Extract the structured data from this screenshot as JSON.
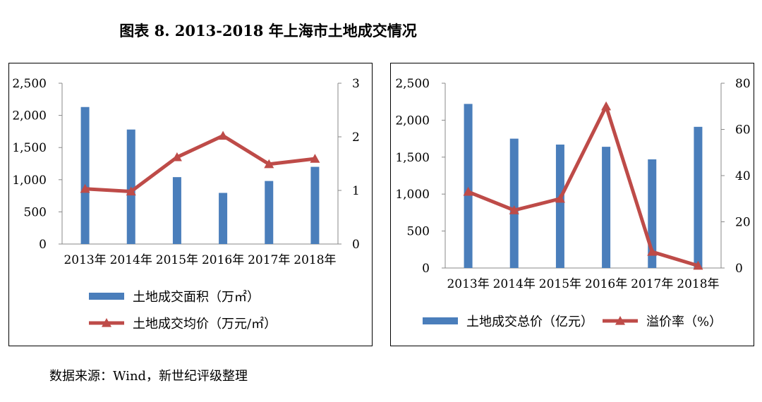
{
  "figure_title": "图表 8. 2013-2018 年上海市土地成交情况",
  "source_note": "数据来源：Wind，新世纪评级整理",
  "colors": {
    "bar": "#4a7ebb",
    "line": "#be4b48",
    "axis": "#888888"
  },
  "chart_data": [
    {
      "type": "bar",
      "categories": [
        "2013年",
        "2014年",
        "2015年",
        "2016年",
        "2017年",
        "2018年"
      ],
      "y_left": {
        "min": 0,
        "max": 2500,
        "ticks": [
          "0",
          "500",
          "1,000",
          "1,500",
          "2,000",
          "2,500"
        ]
      },
      "y_right": {
        "min": 0,
        "max": 3,
        "ticks": [
          "0",
          "1",
          "2",
          "3"
        ]
      },
      "series": [
        {
          "name": "土地成交面积（万㎡）",
          "type": "bar",
          "axis": "left",
          "values": [
            2130,
            1780,
            1040,
            795,
            980,
            1200
          ]
        },
        {
          "name": "土地成交均价（万元/㎡）",
          "type": "line",
          "axis": "right",
          "marker": "triangle",
          "values": [
            1.03,
            0.98,
            1.62,
            2.02,
            1.49,
            1.59
          ]
        }
      ],
      "legend": "bottom"
    },
    {
      "type": "bar",
      "categories": [
        "2013年",
        "2014年",
        "2015年",
        "2016年",
        "2017年",
        "2018年"
      ],
      "y_left": {
        "min": 0,
        "max": 2500,
        "ticks": [
          "0",
          "500",
          "1,000",
          "1,500",
          "2,000",
          "2,500"
        ]
      },
      "y_right": {
        "min": 0,
        "max": 80,
        "ticks": [
          "0",
          "20",
          "40",
          "60",
          "80"
        ]
      },
      "series": [
        {
          "name": "土地成交总价（亿元）",
          "type": "bar",
          "axis": "left",
          "values": [
            2220,
            1750,
            1670,
            1640,
            1470,
            1910
          ]
        },
        {
          "name": "溢价率（%）",
          "type": "line",
          "axis": "right",
          "marker": "triangle",
          "values": [
            33,
            25,
            30,
            70,
            7,
            1
          ]
        }
      ],
      "legend": "bottom"
    }
  ]
}
